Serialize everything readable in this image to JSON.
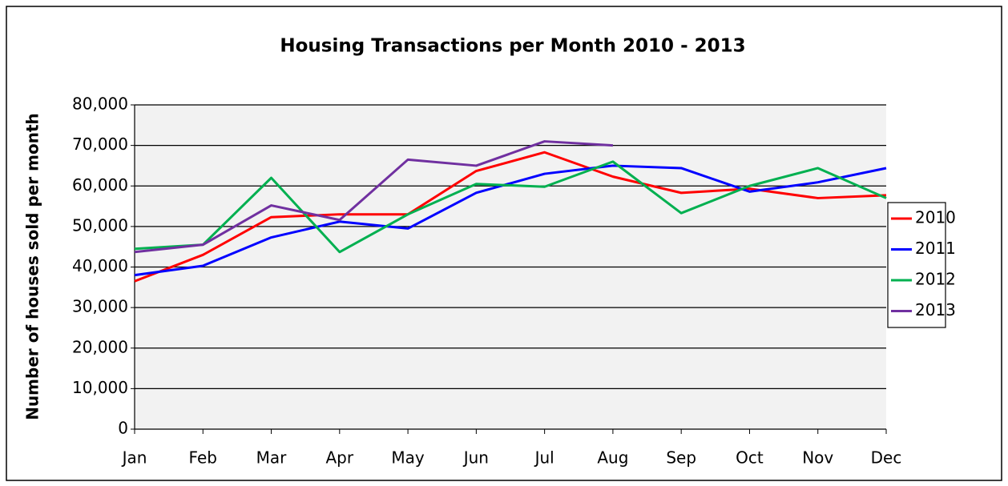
{
  "chart_data": {
    "type": "line",
    "title": "Housing Transactions per Month 2010 - 2013",
    "y_label": "Number of houses sold per month",
    "categories": [
      "Jan",
      "Feb",
      "Mar",
      "Apr",
      "May",
      "Jun",
      "Jul",
      "Aug",
      "Sep",
      "Oct",
      "Nov",
      "Dec"
    ],
    "series": [
      {
        "name": "2010",
        "color": "#ff0000",
        "values": [
          36500,
          43000,
          52300,
          53000,
          53000,
          63700,
          68300,
          62300,
          58300,
          59300,
          57000,
          57700
        ]
      },
      {
        "name": "2011",
        "color": "#0000ff",
        "values": [
          38000,
          40300,
          47300,
          51200,
          49500,
          58300,
          63000,
          65000,
          64400,
          58600,
          60900,
          64400
        ]
      },
      {
        "name": "2012",
        "color": "#00b050",
        "values": [
          44500,
          45500,
          62000,
          43700,
          53000,
          60500,
          59800,
          66000,
          53300,
          60000,
          64400,
          57000
        ]
      },
      {
        "name": "2013",
        "color": "#7030a0",
        "values": [
          43700,
          45500,
          55200,
          51600,
          66500,
          65000,
          71000,
          70000,
          null,
          null,
          null,
          null
        ]
      }
    ],
    "ylim": [
      0,
      80000
    ],
    "yticks": [
      0,
      {
        "value": 10000,
        "label": "10,000"
      },
      {
        "value": 20000,
        "label": "20,000"
      },
      {
        "value": 30000,
        "label": "30,000"
      },
      {
        "value": 40000,
        "label": "40,000"
      },
      {
        "value": 50000,
        "label": "50,000"
      },
      {
        "value": 60000,
        "label": "60,000"
      },
      {
        "value": 70000,
        "label": "70,000"
      },
      {
        "value": 80000,
        "label": "80,000"
      }
    ],
    "grid": true,
    "legend": "right"
  }
}
